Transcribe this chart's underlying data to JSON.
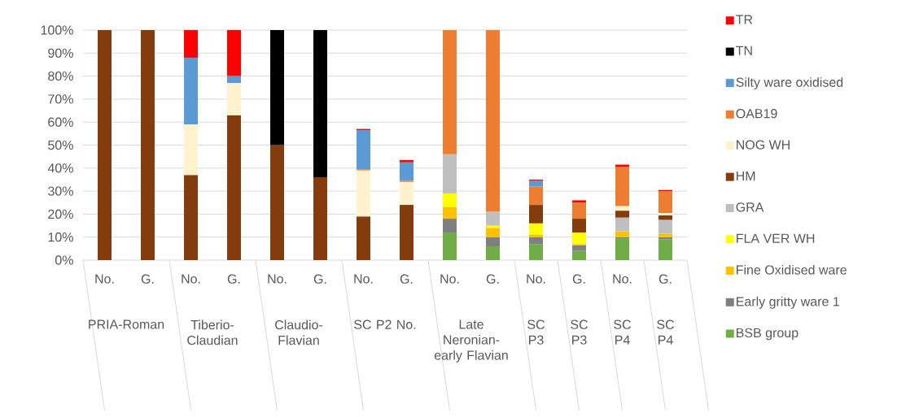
{
  "chart_data": {
    "type": "bar",
    "stacked": true,
    "legend": "right",
    "grid": "y",
    "categories": [
      "No.",
      "G.",
      "No.",
      "G.",
      "No.",
      "G.",
      "No.",
      "G.",
      "No.",
      "G.",
      "No.",
      "G.",
      "No.",
      "G."
    ],
    "annotations": [
      "PRIA-Roman",
      "Tiberio-Claudian",
      "Claudio-Flavian",
      "SC P2 No.",
      "Late Neronian-early Flavian",
      "SC P3",
      "SC P3",
      "SC P4",
      "SC P4"
    ],
    "ylim": [
      0,
      100
    ],
    "yticks": [
      {
        "value": 0,
        "label": "0%"
      },
      {
        "value": 10,
        "label": "10%"
      },
      {
        "value": 20,
        "label": "20%"
      },
      {
        "value": 30,
        "label": "30%"
      },
      {
        "value": 40,
        "label": "40%"
      },
      {
        "value": 50,
        "label": "50%"
      },
      {
        "value": 60,
        "label": "60%"
      },
      {
        "value": 70,
        "label": "70%"
      },
      {
        "value": 80,
        "label": "80%"
      },
      {
        "value": 90,
        "label": "90%"
      },
      {
        "value": 100,
        "label": "100%"
      }
    ],
    "series": [
      {
        "name": "BSB group",
        "color": "#70ad47",
        "values": [
          null,
          null,
          null,
          null,
          null,
          null,
          null,
          null,
          12,
          6,
          7,
          4,
          9.5,
          9
        ]
      },
      {
        "name": "Early gritty ware 1",
        "color": "#7f7f7f",
        "values": [
          null,
          null,
          null,
          null,
          null,
          null,
          null,
          null,
          6,
          4,
          3,
          2.5,
          0.5,
          1
        ]
      },
      {
        "name": "Fine Oxidised ware",
        "color": "#ffc000",
        "values": [
          null,
          null,
          null,
          null,
          null,
          null,
          null,
          null,
          5,
          4,
          1,
          0.5,
          2.5,
          1.5
        ]
      },
      {
        "name": "FLA VER WH",
        "color": "#ffff00",
        "values": [
          null,
          null,
          null,
          null,
          null,
          null,
          null,
          null,
          6,
          1,
          5,
          5,
          null,
          null
        ]
      },
      {
        "name": "GRA",
        "color": "#bfbfbf",
        "values": [
          null,
          null,
          null,
          null,
          null,
          null,
          null,
          null,
          17,
          6,
          null,
          null,
          6,
          6
        ]
      },
      {
        "name": "HM",
        "color": "#843c0c",
        "values": [
          100,
          100,
          37,
          63,
          50,
          36,
          19,
          24,
          null,
          null,
          8,
          6,
          3,
          2
        ]
      },
      {
        "name": "NOG WH",
        "color": "#fff2cc",
        "values": [
          null,
          null,
          22,
          14,
          null,
          null,
          20,
          10,
          null,
          null,
          null,
          null,
          2,
          1
        ]
      },
      {
        "name": "OAB19",
        "color": "#ed7d31",
        "values": [
          null,
          null,
          null,
          null,
          null,
          null,
          0.5,
          0.5,
          54,
          79,
          8,
          7,
          17,
          9.5
        ]
      },
      {
        "name": "Silty ware oxidised",
        "color": "#5b9bd5",
        "values": [
          null,
          null,
          29,
          3,
          null,
          null,
          17,
          8,
          null,
          null,
          2.5,
          null,
          null,
          null
        ]
      },
      {
        "name": "TN",
        "color": "#000000",
        "values": [
          null,
          null,
          null,
          null,
          50,
          64,
          null,
          null,
          null,
          null,
          null,
          null,
          null,
          null
        ]
      },
      {
        "name": "TR",
        "color": "#ff0000",
        "values": [
          null,
          null,
          12,
          20,
          null,
          null,
          0.5,
          1,
          null,
          null,
          0.5,
          1,
          1,
          0.5
        ]
      }
    ]
  }
}
